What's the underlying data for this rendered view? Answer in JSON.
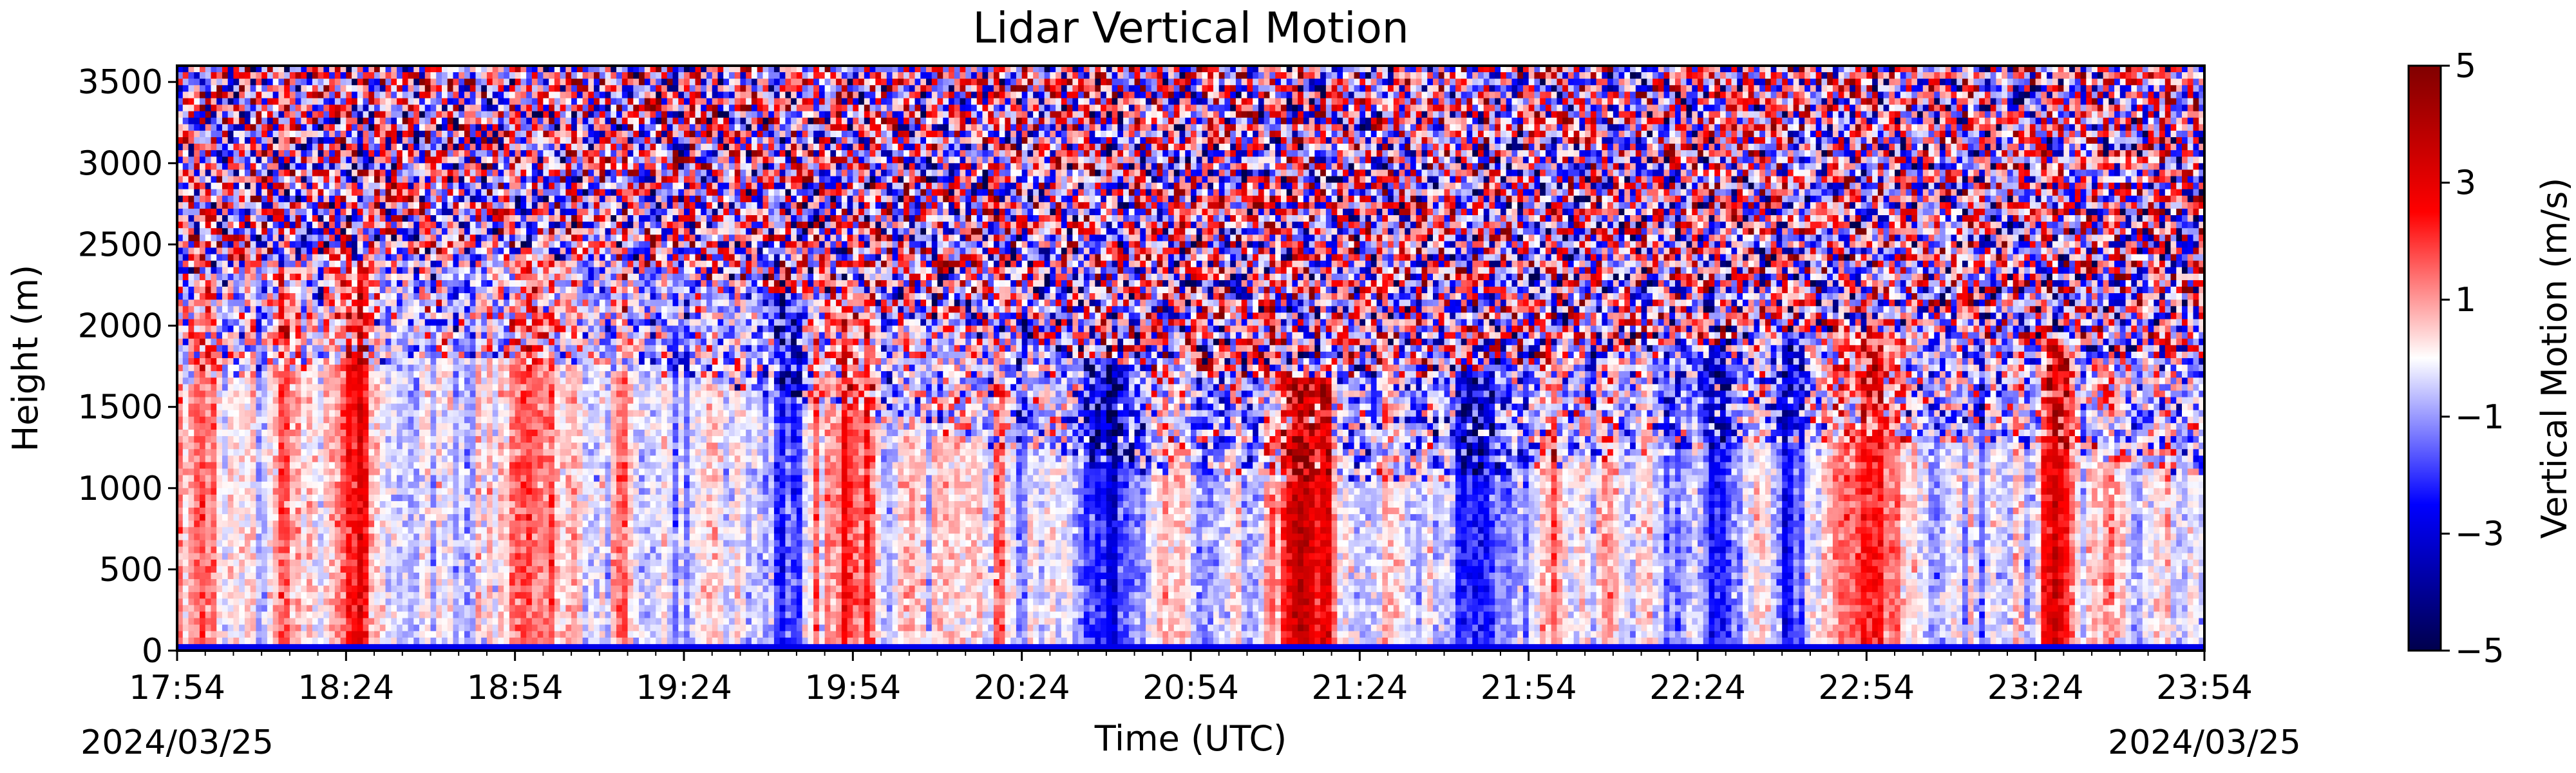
{
  "chart_data": {
    "type": "heatmap",
    "title": "Lidar Vertical Motion",
    "xlabel": "Time (UTC)",
    "ylabel": "Height (m)",
    "x_ticks": [
      "17:54",
      "18:24",
      "18:54",
      "19:24",
      "19:54",
      "20:24",
      "20:54",
      "21:24",
      "21:54",
      "22:24",
      "22:54",
      "23:24",
      "23:54"
    ],
    "x_start_date": "2024/03/25",
    "x_end_date": "2024/03/25",
    "x_range": [
      "17:54",
      "23:54"
    ],
    "y_ticks": [
      0,
      500,
      1000,
      1500,
      2000,
      2500,
      3000,
      3500
    ],
    "ylim": [
      0,
      3600
    ],
    "colorbar": {
      "label": "Vertical Motion (m/s)",
      "ticks": [
        5,
        3,
        1,
        -1,
        -3,
        -5
      ],
      "tick_labels": [
        "5",
        "3",
        "1",
        "−1",
        "−3",
        "−5"
      ],
      "range": [
        -5,
        5
      ],
      "colormap": "seismic",
      "colors": [
        "#00004c",
        "#0000ff",
        "#ffffff",
        "#ff0000",
        "#800000"
      ]
    },
    "grid": false
  }
}
